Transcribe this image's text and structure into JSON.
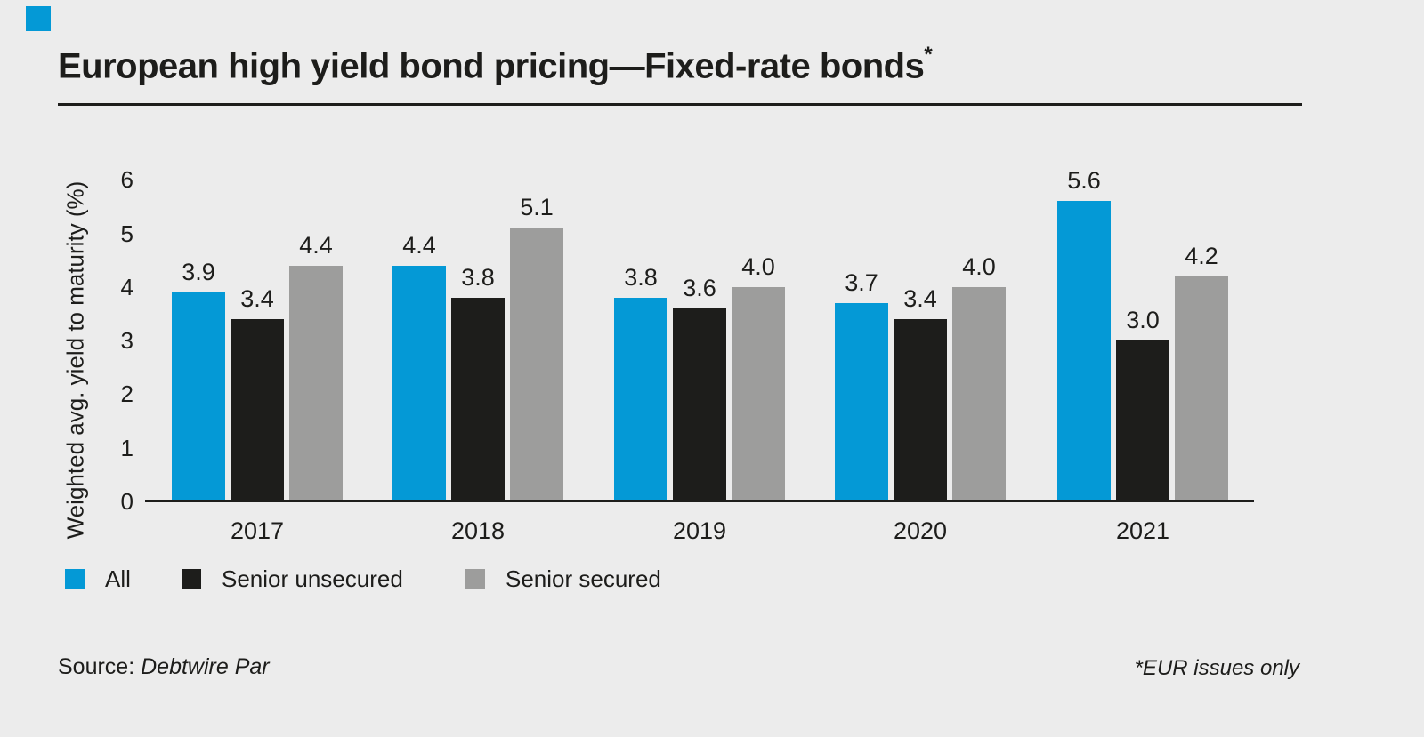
{
  "colors": {
    "background": "#ECECEC",
    "text": "#1D1D1B",
    "accent_blue": "#0499D6",
    "axis": "#1D1D1B"
  },
  "brand_mark": {
    "color": "#0499D6"
  },
  "title": {
    "text": "European high yield bond pricing—Fixed-rate bonds",
    "superscript": "*"
  },
  "chart_data": {
    "type": "bar",
    "title": "European high yield bond pricing—Fixed-rate bonds*",
    "categories": [
      "2017",
      "2018",
      "2019",
      "2020",
      "2021"
    ],
    "series": [
      {
        "name": "All",
        "color": "#0499D6",
        "values": [
          3.9,
          4.4,
          3.8,
          3.7,
          5.6
        ]
      },
      {
        "name": "Senior unsecured",
        "color": "#1D1D1B",
        "values": [
          3.4,
          3.8,
          3.6,
          3.4,
          3.0
        ]
      },
      {
        "name": "Senior secured",
        "color": "#9D9D9C",
        "values": [
          4.4,
          5.1,
          4.0,
          4.0,
          4.2
        ]
      }
    ],
    "xlabel": "",
    "ylabel": "Weighted avg. yield to maturity (%)",
    "ylim": [
      0,
      6
    ],
    "yticks": [
      0,
      1,
      2,
      3,
      4,
      5,
      6
    ],
    "grid": false,
    "value_labels": true,
    "value_label_format": "0.1f",
    "legend_position": "bottom-left"
  },
  "source": {
    "label": "Source:",
    "value": "Debtwire Par"
  },
  "footnote": "*EUR issues only"
}
